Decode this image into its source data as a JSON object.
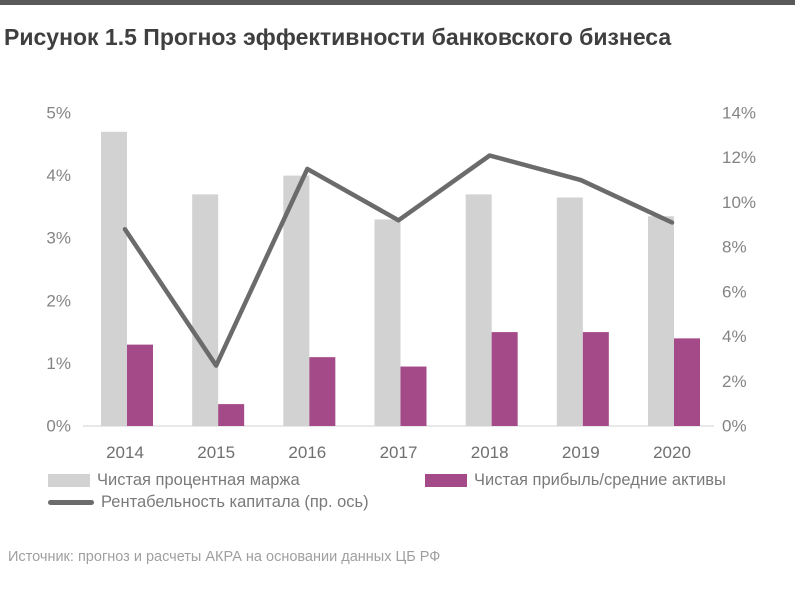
{
  "page": {
    "title_bold": "Рисунок 1.5",
    "title_rest": "Прогноз эффективности банковского бизнеса",
    "source": "Источник: прогноз и расчеты АКРА на основании данных ЦБ РФ"
  },
  "colors": {
    "top_bar": "#595959",
    "title_text": "#3f3f3f",
    "axis_text": "#848484",
    "baseline": "#d9d9d9",
    "legend_text": "#7a7a7a",
    "source_text": "#9f9f9f"
  },
  "chart_data": {
    "type": "bar",
    "subtype": "grouped bars with overlay line on secondary axis",
    "title": "Прогноз эффективности банковского бизнеса",
    "categories": [
      "2014",
      "2015",
      "2016",
      "2017",
      "2018",
      "2019",
      "2020"
    ],
    "series": [
      {
        "name": "Чистая процентная маржа",
        "type": "bar",
        "axis": "left",
        "color": "#d2d2d2",
        "values": [
          4.7,
          3.7,
          4.0,
          3.3,
          3.7,
          3.65,
          3.35
        ]
      },
      {
        "name": "Чистая прибыль/средние активы",
        "type": "bar",
        "axis": "left",
        "color": "#a54a88",
        "values": [
          1.3,
          0.35,
          1.1,
          0.95,
          1.5,
          1.5,
          1.4
        ]
      },
      {
        "name": "Рентабельность капитала (пр. ось)",
        "type": "line",
        "axis": "right",
        "color": "#6b6b6b",
        "values": [
          8.8,
          2.7,
          11.5,
          9.2,
          12.1,
          11.0,
          9.1
        ]
      }
    ],
    "left_axis": {
      "min": 0,
      "max": 5,
      "step": 1,
      "ticks": [
        "0%",
        "1%",
        "2%",
        "3%",
        "4%",
        "5%"
      ]
    },
    "right_axis": {
      "min": 0,
      "max": 14,
      "step": 2,
      "ticks": [
        "0%",
        "2%",
        "4%",
        "6%",
        "8%",
        "10%",
        "12%",
        "14%"
      ]
    },
    "grid": false,
    "legend_position": "bottom"
  }
}
